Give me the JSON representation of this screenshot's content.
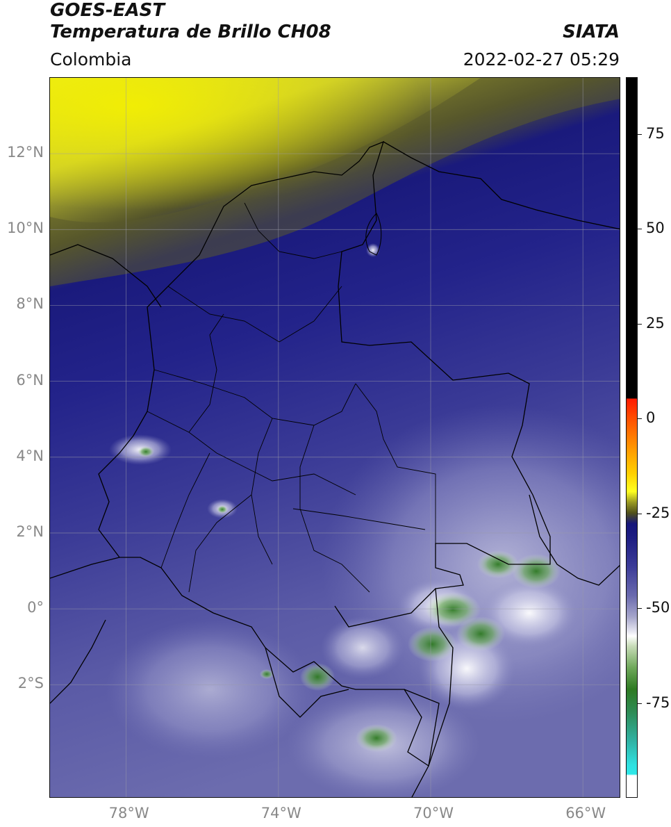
{
  "header": {
    "satellite": "GOES-EAST",
    "product": "Temperatura de Brillo CH08",
    "organization": "SIATA",
    "region": "Colombia",
    "datetime": "2022-02-27 05:29"
  },
  "map": {
    "lon_range": [
      -80,
      -65
    ],
    "lat_range": [
      -5,
      14
    ],
    "lon_ticks": [
      {
        "value": -78,
        "label": "78°W"
      },
      {
        "value": -74,
        "label": "74°W"
      },
      {
        "value": -70,
        "label": "70°W"
      },
      {
        "value": -66,
        "label": "66°W"
      }
    ],
    "lat_ticks": [
      {
        "value": 12,
        "label": "12°N"
      },
      {
        "value": 10,
        "label": "10°N"
      },
      {
        "value": 8,
        "label": "8°N"
      },
      {
        "value": 6,
        "label": "6°N"
      },
      {
        "value": 4,
        "label": "4°N"
      },
      {
        "value": 2,
        "label": "2°N"
      },
      {
        "value": 0,
        "label": "0°"
      },
      {
        "value": -2,
        "label": "2°S"
      }
    ]
  },
  "colorbar": {
    "range": [
      -100,
      90
    ],
    "ticks": [
      {
        "value": 75,
        "label": "75"
      },
      {
        "value": 50,
        "label": "50"
      },
      {
        "value": 25,
        "label": "25"
      },
      {
        "value": 0,
        "label": "0"
      },
      {
        "value": -25,
        "label": "-25"
      },
      {
        "value": -50,
        "label": "-50"
      },
      {
        "value": -75,
        "label": "-75"
      }
    ]
  }
}
